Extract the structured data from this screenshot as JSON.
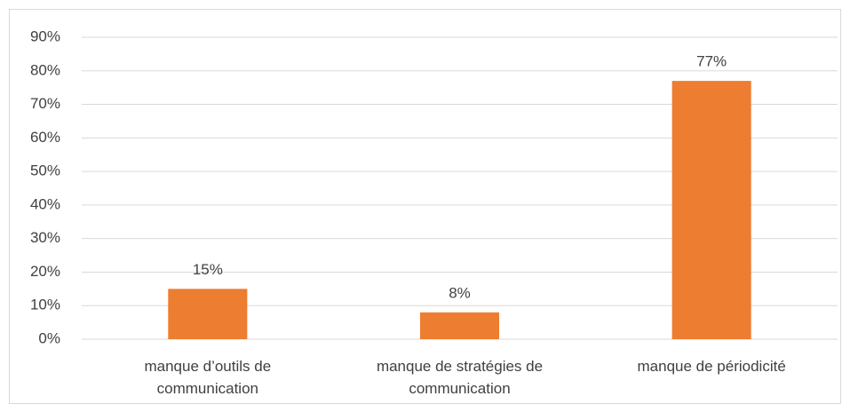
{
  "chart_data": {
    "type": "bar",
    "categories": [
      "manque d’outils de communication",
      "manque de stratégies de communication",
      "manque de périodicité"
    ],
    "values": [
      15,
      8,
      77
    ],
    "value_labels": [
      "15%",
      "8%",
      "77%"
    ],
    "color": "#ed7d31",
    "ylim": [
      0,
      90
    ],
    "yticks": [
      {
        "value": 0,
        "label": "0%"
      },
      {
        "value": 10,
        "label": "10%"
      },
      {
        "value": 20,
        "label": "20%"
      },
      {
        "value": 30,
        "label": "30%"
      },
      {
        "value": 40,
        "label": "40%"
      },
      {
        "value": 50,
        "label": "50%"
      },
      {
        "value": 60,
        "label": "60%"
      },
      {
        "value": 70,
        "label": "70%"
      },
      {
        "value": 80,
        "label": "80%"
      },
      {
        "value": 90,
        "label": "90%"
      }
    ],
    "grid": true
  }
}
